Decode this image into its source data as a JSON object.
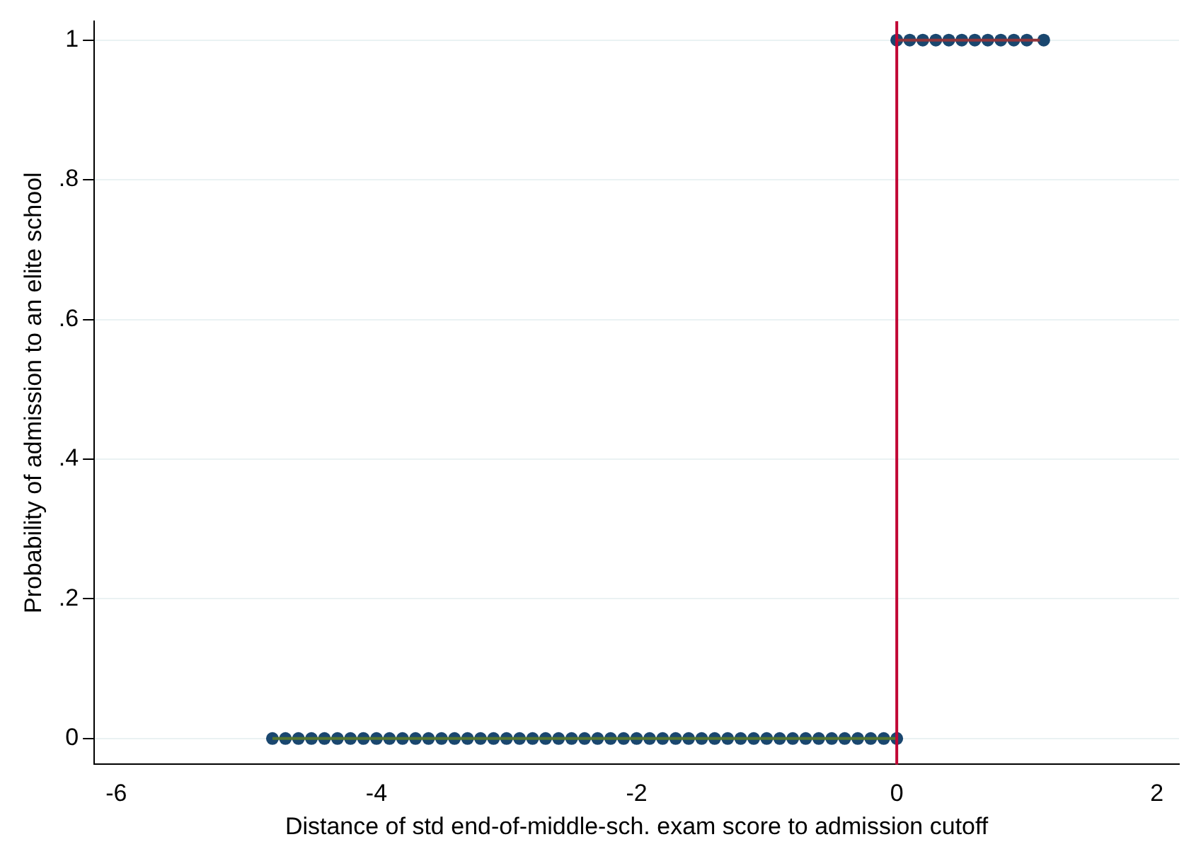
{
  "chart_data": {
    "type": "scatter",
    "xlabel": "Distance of std end-of-middle-sch. exam score to admission cutoff",
    "ylabel": "Probability of admission to an elite school",
    "xlim": [
      -6.17,
      2.17
    ],
    "xticks": [
      -6,
      -4,
      -2,
      0,
      2
    ],
    "ylim": [
      -0.037,
      1.027
    ],
    "yticks": [
      {
        "value": 0,
        "label": "0"
      },
      {
        "value": 0.2,
        "label": ".2"
      },
      {
        "value": 0.4,
        "label": ".4"
      },
      {
        "value": 0.6,
        "label": ".6"
      },
      {
        "value": 0.8,
        "label": ".8"
      },
      {
        "value": 1,
        "label": "1"
      }
    ],
    "grid": "y",
    "legend": false,
    "marker": "circle",
    "series": [
      {
        "type": "scatter",
        "color": "#1a476f",
        "x": [
          -4.8,
          -4.7,
          -4.6,
          -4.5,
          -4.4,
          -4.3,
          -4.2,
          -4.1,
          -4.0,
          -3.9,
          -3.8,
          -3.7,
          -3.6,
          -3.5,
          -3.4,
          -3.3,
          -3.2,
          -3.1,
          -3.0,
          -2.9,
          -2.8,
          -2.7,
          -2.6,
          -2.5,
          -2.4,
          -2.3,
          -2.2,
          -2.1,
          -2.0,
          -1.9,
          -1.8,
          -1.7,
          -1.6,
          -1.5,
          -1.4,
          -1.3,
          -1.2,
          -1.1,
          -1.0,
          -0.9,
          -0.8,
          -0.7,
          -0.6,
          -0.5,
          -0.4,
          -0.3,
          -0.2,
          -0.1,
          0
        ],
        "values": [
          0,
          0,
          0,
          0,
          0,
          0,
          0,
          0,
          0,
          0,
          0,
          0,
          0,
          0,
          0,
          0,
          0,
          0,
          0,
          0,
          0,
          0,
          0,
          0,
          0,
          0,
          0,
          0,
          0,
          0,
          0,
          0,
          0,
          0,
          0,
          0,
          0,
          0,
          0,
          0,
          0,
          0,
          0,
          0,
          0,
          0,
          0,
          0,
          0
        ]
      },
      {
        "type": "scatter",
        "color": "#1a476f",
        "x": [
          0,
          0.1,
          0.2,
          0.3,
          0.4,
          0.5,
          0.6,
          0.7,
          0.8,
          0.9,
          1.0,
          1.13
        ],
        "values": [
          1,
          1,
          1,
          1,
          1,
          1,
          1,
          1,
          1,
          1,
          1,
          1
        ]
      },
      {
        "type": "line",
        "marker": "none",
        "color": "#55752f",
        "x": [
          -4.8,
          0
        ],
        "values": [
          0,
          0
        ]
      },
      {
        "type": "line",
        "marker": "none",
        "color": "#90353b",
        "x": [
          0,
          1.1
        ],
        "values": [
          1,
          1
        ]
      }
    ],
    "ref_lines": [
      {
        "axis": "x",
        "value": 0,
        "color": "#c10534"
      }
    ]
  }
}
